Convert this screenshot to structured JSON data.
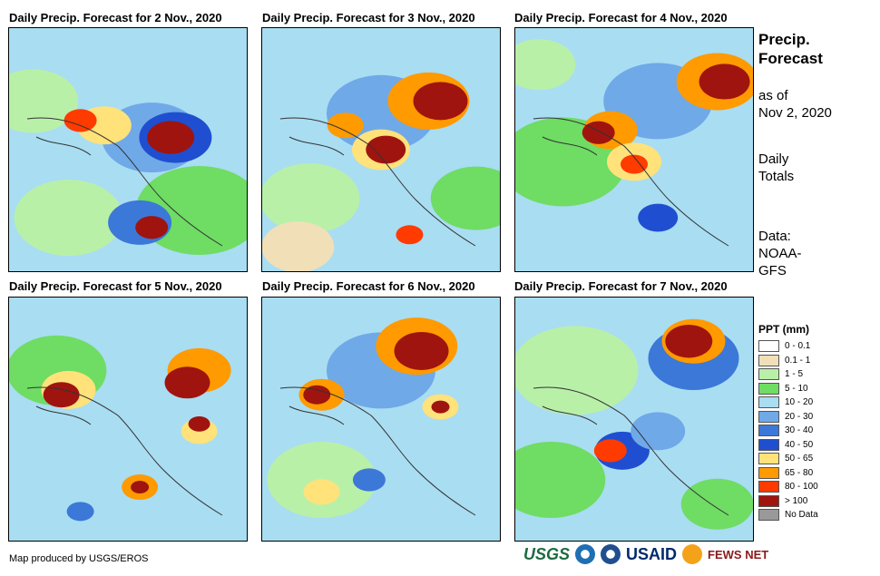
{
  "panels": [
    {
      "title": "Daily Precip. Forecast for 2 Nov., 2020",
      "seed": 2
    },
    {
      "title": "Daily Precip. Forecast for 3 Nov., 2020",
      "seed": 3
    },
    {
      "title": "Daily Precip. Forecast for 4 Nov., 2020",
      "seed": 4
    },
    {
      "title": "Daily Precip. Forecast for 5 Nov., 2020",
      "seed": 5
    },
    {
      "title": "Daily Precip. Forecast for 6 Nov., 2020",
      "seed": 6
    },
    {
      "title": "Daily Precip. Forecast for 7 Nov., 2020",
      "seed": 7
    }
  ],
  "side": {
    "title_line1": "Precip.",
    "title_line2": "Forecast",
    "asof_line1": "as of",
    "asof_line2": "Nov 2, 2020",
    "totals_line1": "Daily",
    "totals_line2": "Totals",
    "data_line1": "Data:",
    "data_line2": "NOAA-",
    "data_line3": "GFS"
  },
  "legend": {
    "title": "PPT (mm)",
    "items": [
      {
        "label": "0 - 0.1",
        "color": "#ffffff"
      },
      {
        "label": "0.1 - 1",
        "color": "#f1dfb8"
      },
      {
        "label": "1 - 5",
        "color": "#b9f0a8"
      },
      {
        "label": "5 - 10",
        "color": "#6fdc64"
      },
      {
        "label": "10 - 20",
        "color": "#a9ddf2"
      },
      {
        "label": "20 - 30",
        "color": "#6fa9e8"
      },
      {
        "label": "30 - 40",
        "color": "#3c78d8"
      },
      {
        "label": "40 - 50",
        "color": "#1f4fd0"
      },
      {
        "label": "50 - 65",
        "color": "#ffe27a"
      },
      {
        "label": "65 - 80",
        "color": "#ff9a00"
      },
      {
        "label": "80 - 100",
        "color": "#ff3b00"
      },
      {
        "label": "> 100",
        "color": "#a0140f"
      },
      {
        "label": "No Data",
        "color": "#999999"
      }
    ]
  },
  "footer": {
    "credit": "Map produced by USGS/EROS"
  },
  "logos": {
    "usgs": "USGS",
    "usaid": "USAID",
    "fews": "FEWS NET"
  }
}
